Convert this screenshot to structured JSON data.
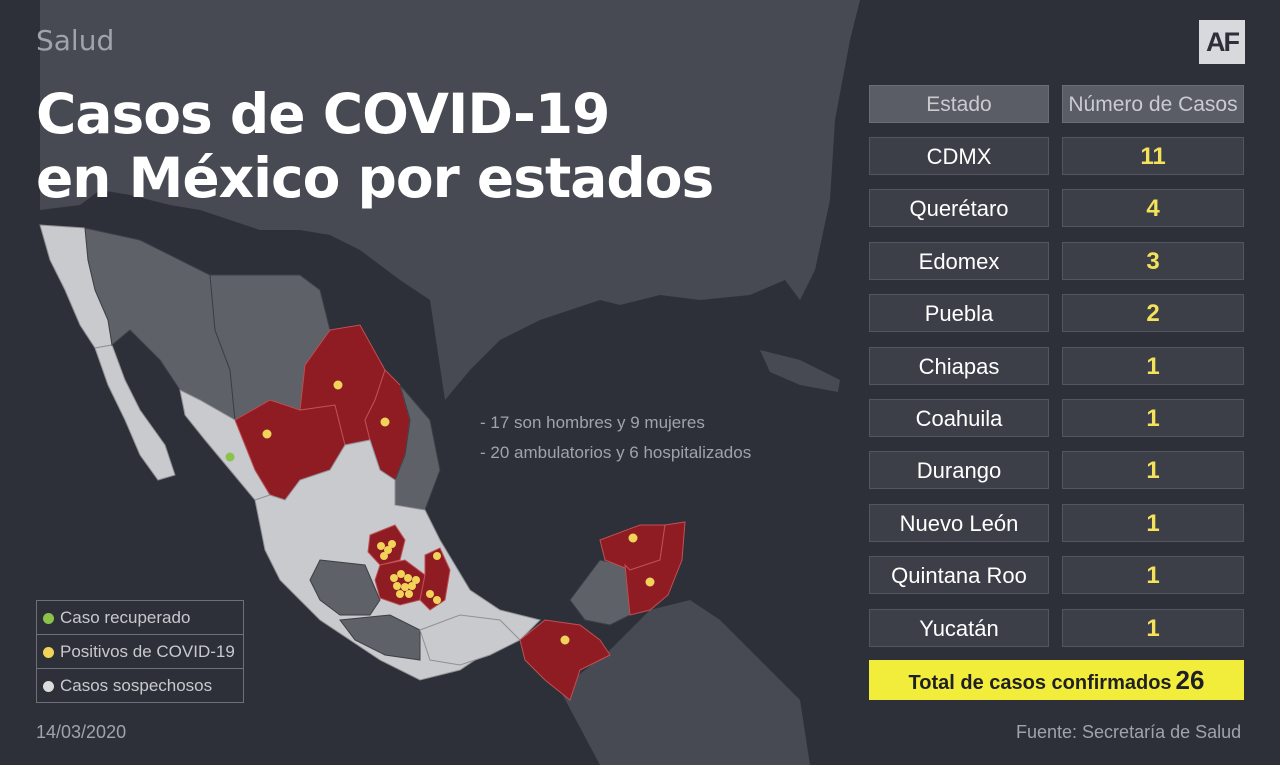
{
  "header": {
    "section": "Salud",
    "title_line1": "Casos de COVID-19",
    "title_line2": "en México por estados",
    "logo": "AF"
  },
  "notes": [
    "- 17 son hombres y 9 mujeres",
    "- 20 ambulatorios y 6 hospitalizados"
  ],
  "legend": [
    {
      "label": "Caso recuperado",
      "color": "#8bc34a"
    },
    {
      "label": "Positivos de COVID-19",
      "color": "#f2d35a"
    },
    {
      "label": "Casos sospechosos",
      "color": "#dcdcdc"
    }
  ],
  "table": {
    "headers": [
      "Estado",
      "Número de Casos"
    ],
    "rows": [
      {
        "state": "CDMX",
        "cases": "11"
      },
      {
        "state": "Querétaro",
        "cases": "4"
      },
      {
        "state": "Edomex",
        "cases": "3"
      },
      {
        "state": "Puebla",
        "cases": "2"
      },
      {
        "state": "Chiapas",
        "cases": "1"
      },
      {
        "state": "Coahuila",
        "cases": "1"
      },
      {
        "state": "Durango",
        "cases": "1"
      },
      {
        "state": "Nuevo León",
        "cases": "1"
      },
      {
        "state": "Quintana Roo",
        "cases": "1"
      },
      {
        "state": "Yucatán",
        "cases": "1"
      }
    ],
    "total_label": "Total de casos confirmados",
    "total_value": "26"
  },
  "footer": {
    "date": "14/03/2020",
    "source": "Fuente: Secretaría de Salud"
  },
  "colors": {
    "background": "#2d3038",
    "land_other": "#4a4c54",
    "state_unaffected": "#5f6169",
    "state_suspected": "#c9cacd",
    "state_positive": "#8e1c22",
    "positive_dot": "#f2d35a",
    "recovered_dot": "#8bc34a",
    "highlight": "#f2ec3b"
  }
}
